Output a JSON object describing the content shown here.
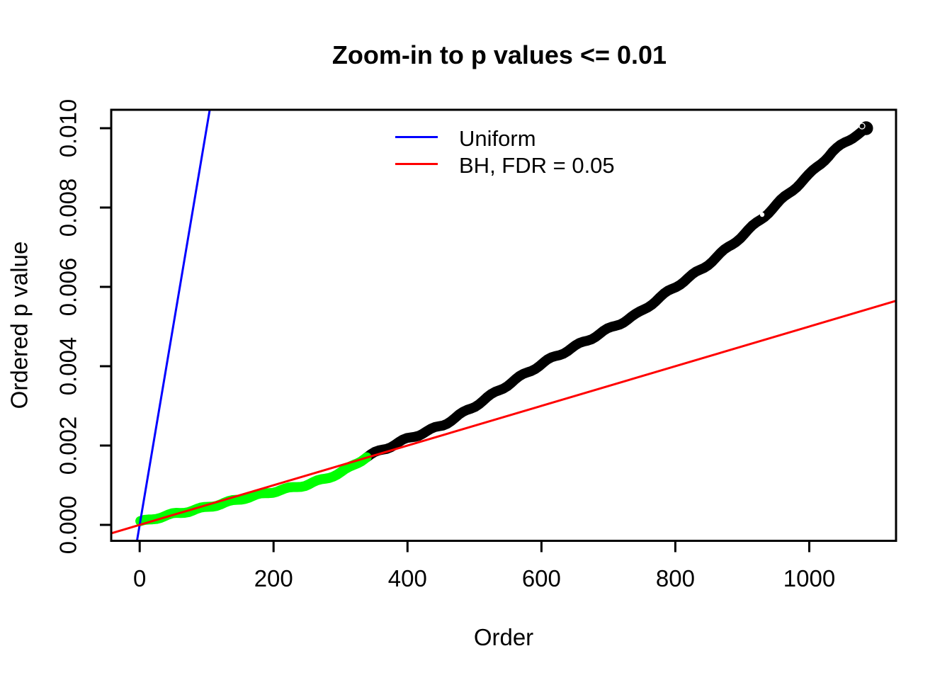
{
  "chart_data": {
    "type": "scatter",
    "title": "Zoom-in to p values <= 0.01",
    "xlabel": "Order",
    "ylabel": "Ordered p value",
    "x_axis": {
      "label": "Order",
      "ticks": [
        0,
        200,
        400,
        600,
        800,
        1000
      ],
      "range": [
        -42.5,
        1129.6
      ]
    },
    "y_axis": {
      "label": "Ordered p value",
      "ticks": [
        0.0,
        0.002,
        0.004,
        0.006,
        0.008,
        0.01
      ],
      "tick_labels": [
        "0.000",
        "0.002",
        "0.004",
        "0.006",
        "0.008",
        "0.010"
      ],
      "range": [
        -0.000402,
        0.010464
      ]
    },
    "grid": false,
    "n_points_shown": 1085,
    "bh_significant_count": 339,
    "lines": [
      {
        "name": "uniform",
        "label": "Uniform",
        "color": "#0000FF",
        "slope_per_order": 0.0001,
        "intercept": 0
      },
      {
        "name": "bh",
        "label": "BH, FDR = 0.05",
        "color": "#FF0000",
        "slope_per_order": 5e-06,
        "intercept": 0
      }
    ],
    "legend": {
      "position": "top-center-inside",
      "entries": [
        {
          "label": "Uniform",
          "color": "#0000FF"
        },
        {
          "label": "BH, FDR = 0.05",
          "color": "#FF0000"
        }
      ]
    },
    "series": [
      {
        "name": "bh-significant-points",
        "color": "#00FF00",
        "order_range": [
          1,
          339
        ],
        "anchors": [
          [
            1,
            6e-05
          ],
          [
            50,
            0.00028
          ],
          [
            100,
            0.00046
          ],
          [
            150,
            0.00064
          ],
          [
            200,
            0.00082
          ],
          [
            250,
            0.00102
          ],
          [
            299,
            0.00132
          ],
          [
            339,
            0.00171
          ]
        ]
      },
      {
        "name": "not-significant-points",
        "color": "#000000",
        "order_range": [
          339,
          1085
        ],
        "anchors": [
          [
            339,
            0.00171
          ],
          [
            450,
            0.0025
          ],
          [
            532,
            0.00335
          ],
          [
            610,
            0.00413
          ],
          [
            691,
            0.00488
          ],
          [
            744,
            0.00532
          ],
          [
            840,
            0.00645
          ],
          [
            930,
            0.00775
          ],
          [
            1000,
            0.0088
          ],
          [
            1035,
            0.0094
          ],
          [
            1070,
            0.00985
          ],
          [
            1085,
            0.01
          ]
        ]
      }
    ]
  }
}
